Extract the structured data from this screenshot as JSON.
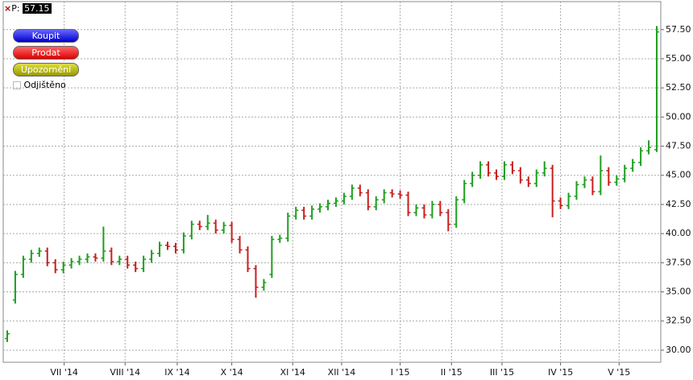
{
  "toolbar": {
    "price_prefix": "P:",
    "price": 57.15,
    "buttons": [
      "Koupit",
      "Prodat",
      "Upozornění"
    ],
    "checkbox": "Odjištěno"
  },
  "chart_data": {
    "type": "ohlc",
    "open": [
      31.0,
      34.3,
      36.5,
      37.8,
      38.3,
      38.5,
      37.5,
      36.9,
      37.3,
      37.6,
      37.8,
      38.0,
      37.9,
      38.5,
      37.6,
      37.8,
      37.3,
      37.0,
      37.8,
      38.3,
      39.0,
      38.9,
      38.6,
      39.8,
      40.8,
      40.6,
      40.9,
      40.3,
      40.7,
      39.5,
      38.6,
      37.0,
      35.4,
      36.5,
      39.5,
      39.6,
      41.5,
      42.0,
      41.5,
      42.1,
      42.3,
      42.6,
      42.8,
      43.2,
      43.9,
      43.5,
      42.3,
      42.9,
      43.5,
      43.4,
      43.3,
      41.8,
      42.2,
      41.6,
      42.5,
      41.8,
      40.8,
      42.9,
      44.3,
      45.0,
      45.9,
      45.2,
      44.9,
      45.9,
      45.4,
      44.6,
      44.3,
      45.2,
      45.6,
      42.8,
      42.4,
      43.2,
      44.2,
      44.6,
      43.6,
      45.4,
      44.4,
      44.7,
      45.6,
      46.1,
      47.1,
      47.2
    ],
    "high": [
      31.7,
      36.8,
      38.1,
      38.6,
      38.8,
      38.8,
      37.8,
      37.6,
      37.9,
      38.1,
      38.3,
      38.3,
      40.6,
      38.8,
      38.1,
      38.1,
      37.6,
      38.1,
      38.6,
      39.3,
      39.3,
      39.2,
      40.1,
      41.1,
      41.1,
      41.6,
      41.2,
      41.0,
      41.0,
      39.8,
      38.9,
      37.3,
      36.1,
      39.8,
      39.9,
      41.8,
      42.3,
      42.3,
      42.4,
      42.6,
      42.9,
      43.1,
      43.5,
      44.2,
      44.2,
      43.8,
      43.2,
      43.8,
      43.8,
      43.7,
      43.6,
      42.5,
      42.5,
      42.8,
      42.8,
      42.1,
      43.2,
      44.6,
      45.3,
      46.2,
      46.2,
      45.5,
      46.2,
      46.2,
      45.7,
      44.9,
      45.5,
      46.2,
      45.9,
      43.1,
      43.5,
      44.5,
      44.9,
      44.9,
      46.7,
      45.7,
      45.0,
      45.9,
      46.4,
      47.4,
      48.0,
      57.8
    ],
    "low": [
      30.7,
      34.0,
      36.2,
      37.5,
      38.0,
      37.2,
      36.6,
      36.6,
      37.0,
      37.3,
      37.5,
      37.6,
      37.6,
      37.3,
      37.3,
      37.0,
      36.7,
      36.7,
      37.5,
      38.0,
      38.6,
      38.3,
      38.3,
      39.5,
      40.3,
      40.3,
      40.0,
      40.0,
      39.2,
      38.3,
      36.7,
      34.5,
      35.1,
      36.2,
      39.2,
      39.3,
      41.2,
      41.2,
      41.2,
      41.8,
      42.0,
      42.3,
      42.5,
      42.9,
      43.2,
      42.0,
      42.0,
      42.6,
      43.1,
      43.0,
      41.5,
      41.5,
      41.3,
      41.3,
      41.5,
      40.2,
      40.5,
      42.6,
      44.0,
      44.7,
      44.9,
      44.6,
      44.6,
      45.1,
      44.3,
      44.0,
      44.0,
      44.9,
      41.4,
      42.1,
      42.1,
      42.9,
      43.9,
      43.3,
      43.3,
      44.1,
      44.1,
      44.4,
      45.3,
      45.8,
      46.8,
      47.0
    ],
    "close": [
      31.4,
      36.5,
      37.8,
      38.3,
      38.5,
      37.5,
      36.9,
      37.3,
      37.6,
      37.8,
      38.0,
      37.9,
      38.5,
      37.6,
      37.8,
      37.3,
      37.0,
      37.8,
      38.3,
      39.0,
      38.9,
      38.6,
      39.8,
      40.8,
      40.6,
      40.9,
      40.3,
      40.7,
      39.5,
      38.6,
      37.0,
      35.4,
      35.8,
      39.5,
      39.6,
      41.5,
      42.0,
      41.5,
      42.1,
      42.3,
      42.6,
      42.8,
      43.2,
      43.9,
      43.5,
      42.3,
      42.9,
      43.5,
      43.4,
      43.3,
      41.8,
      42.2,
      41.6,
      42.5,
      41.8,
      40.8,
      42.9,
      44.3,
      45.0,
      45.9,
      45.2,
      44.9,
      45.9,
      45.4,
      44.6,
      44.3,
      45.2,
      45.6,
      42.8,
      42.4,
      43.2,
      44.2,
      44.6,
      43.6,
      45.4,
      44.4,
      44.7,
      45.6,
      46.1,
      47.1,
      47.4,
      57.3
    ],
    "up_color": "#1e9e1e",
    "down_color": "#c81e1e",
    "xlim": [
      0,
      82
    ],
    "xticks": [
      {
        "value": 7.6,
        "label": "VII '14"
      },
      {
        "value": 15.2,
        "label": "VIII '14"
      },
      {
        "value": 21.7,
        "label": "IX '14"
      },
      {
        "value": 28.5,
        "label": "X '14"
      },
      {
        "value": 36.1,
        "label": "XI '14"
      },
      {
        "value": 42.2,
        "label": "XII '14"
      },
      {
        "value": 49.5,
        "label": "I '15"
      },
      {
        "value": 55.9,
        "label": "II '15"
      },
      {
        "value": 62.2,
        "label": "III '15"
      },
      {
        "value": 69.5,
        "label": "IV '15"
      },
      {
        "value": 76.8,
        "label": "V '15"
      }
    ],
    "ylim": [
      28.96,
      59.9
    ],
    "yticks": [
      {
        "value": 30,
        "label": "30.00"
      },
      {
        "value": 32.5,
        "label": "32.50"
      },
      {
        "value": 35,
        "label": "35.00"
      },
      {
        "value": 37.5,
        "label": "37.50"
      },
      {
        "value": 40,
        "label": "40.00"
      },
      {
        "value": 42.5,
        "label": "42.50"
      },
      {
        "value": 45,
        "label": "45.00"
      },
      {
        "value": 47.5,
        "label": "47.50"
      },
      {
        "value": 50,
        "label": "50.00"
      },
      {
        "value": 52.5,
        "label": "52.50"
      },
      {
        "value": 55,
        "label": "55.00"
      },
      {
        "value": 57.5,
        "label": "57.50"
      }
    ],
    "grid": true
  }
}
